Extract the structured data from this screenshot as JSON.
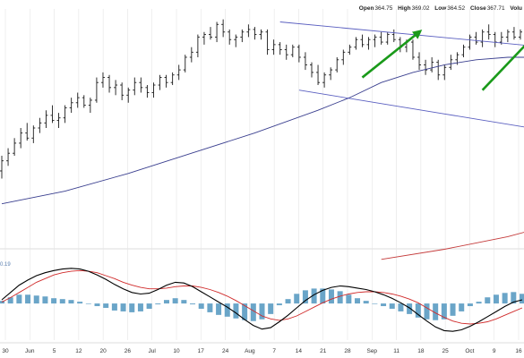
{
  "header": {
    "open_label": "Open",
    "open_value": "364.75",
    "high_label": "High",
    "high_value": "369.02",
    "low_label": "Low",
    "low_value": "364.52",
    "close_label": "Close",
    "close_value": "367.71",
    "volume_label": "Volu"
  },
  "colors": {
    "price_bar": "#1a1a1a",
    "ma_short": "#3a3f8f",
    "ma_long": "#c43a3a",
    "channel": "#5a5fc0",
    "arrow": "#1a9a1a",
    "macd_line": "#000000",
    "signal_line": "#d02a2a",
    "histogram": "#6aa5c8",
    "grid": "#e4e4e4"
  },
  "chart_data": [
    {
      "type": "ohlc",
      "xlabels": [
        "30",
        "Jun",
        "5",
        "12",
        "20",
        "26",
        "Jul",
        "10",
        "17",
        "24",
        "Aug",
        "7",
        "14",
        "21",
        "28",
        "Sep",
        "11",
        "18",
        "25",
        "Oct",
        "9",
        "16"
      ],
      "bars": [
        {
          "o": 303,
          "h": 309,
          "l": 300,
          "c": 307
        },
        {
          "o": 307,
          "h": 312,
          "l": 305,
          "c": 310
        },
        {
          "o": 310,
          "h": 316,
          "l": 309,
          "c": 314
        },
        {
          "o": 314,
          "h": 320,
          "l": 312,
          "c": 318
        },
        {
          "o": 318,
          "h": 322,
          "l": 315,
          "c": 316
        },
        {
          "o": 316,
          "h": 321,
          "l": 314,
          "c": 320
        },
        {
          "o": 320,
          "h": 324,
          "l": 318,
          "c": 322
        },
        {
          "o": 322,
          "h": 327,
          "l": 320,
          "c": 325
        },
        {
          "o": 325,
          "h": 329,
          "l": 322,
          "c": 323
        },
        {
          "o": 323,
          "h": 326,
          "l": 320,
          "c": 324
        },
        {
          "o": 324,
          "h": 329,
          "l": 322,
          "c": 328
        },
        {
          "o": 328,
          "h": 332,
          "l": 326,
          "c": 330
        },
        {
          "o": 330,
          "h": 334,
          "l": 328,
          "c": 332
        },
        {
          "o": 332,
          "h": 333,
          "l": 328,
          "c": 329
        },
        {
          "o": 329,
          "h": 332,
          "l": 326,
          "c": 331
        },
        {
          "o": 331,
          "h": 340,
          "l": 330,
          "c": 338
        },
        {
          "o": 338,
          "h": 342,
          "l": 336,
          "c": 340
        },
        {
          "o": 340,
          "h": 341,
          "l": 334,
          "c": 336
        },
        {
          "o": 336,
          "h": 339,
          "l": 333,
          "c": 337
        },
        {
          "o": 337,
          "h": 338,
          "l": 331,
          "c": 333
        },
        {
          "o": 333,
          "h": 336,
          "l": 330,
          "c": 335
        },
        {
          "o": 335,
          "h": 340,
          "l": 333,
          "c": 338
        },
        {
          "o": 338,
          "h": 340,
          "l": 334,
          "c": 336
        },
        {
          "o": 336,
          "h": 337,
          "l": 332,
          "c": 334
        },
        {
          "o": 334,
          "h": 338,
          "l": 332,
          "c": 337
        },
        {
          "o": 337,
          "h": 341,
          "l": 335,
          "c": 340
        },
        {
          "o": 340,
          "h": 341,
          "l": 336,
          "c": 338
        },
        {
          "o": 338,
          "h": 342,
          "l": 337,
          "c": 341
        },
        {
          "o": 341,
          "h": 345,
          "l": 339,
          "c": 343
        },
        {
          "o": 343,
          "h": 349,
          "l": 342,
          "c": 348
        },
        {
          "o": 348,
          "h": 352,
          "l": 346,
          "c": 350
        },
        {
          "o": 350,
          "h": 357,
          "l": 348,
          "c": 356
        },
        {
          "o": 356,
          "h": 358,
          "l": 353,
          "c": 357
        },
        {
          "o": 357,
          "h": 360,
          "l": 355,
          "c": 356
        },
        {
          "o": 356,
          "h": 362,
          "l": 354,
          "c": 361
        },
        {
          "o": 361,
          "h": 363,
          "l": 356,
          "c": 358
        },
        {
          "o": 358,
          "h": 359,
          "l": 353,
          "c": 355
        },
        {
          "o": 355,
          "h": 357,
          "l": 352,
          "c": 356
        },
        {
          "o": 356,
          "h": 359,
          "l": 354,
          "c": 358
        },
        {
          "o": 358,
          "h": 361,
          "l": 356,
          "c": 359
        },
        {
          "o": 359,
          "h": 360,
          "l": 355,
          "c": 357
        },
        {
          "o": 357,
          "h": 359,
          "l": 355,
          "c": 358
        },
        {
          "o": 358,
          "h": 359,
          "l": 349,
          "c": 351
        },
        {
          "o": 351,
          "h": 355,
          "l": 349,
          "c": 353
        },
        {
          "o": 353,
          "h": 354,
          "l": 349,
          "c": 351
        },
        {
          "o": 351,
          "h": 353,
          "l": 347,
          "c": 349
        },
        {
          "o": 349,
          "h": 353,
          "l": 348,
          "c": 352
        },
        {
          "o": 352,
          "h": 353,
          "l": 346,
          "c": 348
        },
        {
          "o": 348,
          "h": 350,
          "l": 343,
          "c": 345
        },
        {
          "o": 345,
          "h": 346,
          "l": 340,
          "c": 342
        },
        {
          "o": 342,
          "h": 345,
          "l": 337,
          "c": 338
        },
        {
          "o": 338,
          "h": 342,
          "l": 336,
          "c": 341
        },
        {
          "o": 341,
          "h": 344,
          "l": 339,
          "c": 343
        },
        {
          "o": 343,
          "h": 348,
          "l": 342,
          "c": 347
        },
        {
          "o": 347,
          "h": 351,
          "l": 345,
          "c": 350
        },
        {
          "o": 350,
          "h": 353,
          "l": 349,
          "c": 352
        },
        {
          "o": 352,
          "h": 356,
          "l": 351,
          "c": 355
        },
        {
          "o": 355,
          "h": 357,
          "l": 352,
          "c": 353
        },
        {
          "o": 353,
          "h": 356,
          "l": 351,
          "c": 355
        },
        {
          "o": 355,
          "h": 357,
          "l": 352,
          "c": 356
        },
        {
          "o": 356,
          "h": 358,
          "l": 353,
          "c": 354
        },
        {
          "o": 354,
          "h": 358,
          "l": 353,
          "c": 357
        },
        {
          "o": 357,
          "h": 359,
          "l": 354,
          "c": 355
        },
        {
          "o": 355,
          "h": 356,
          "l": 350,
          "c": 352
        },
        {
          "o": 352,
          "h": 355,
          "l": 350,
          "c": 354
        },
        {
          "o": 354,
          "h": 355,
          "l": 347,
          "c": 348
        },
        {
          "o": 348,
          "h": 350,
          "l": 343,
          "c": 345
        },
        {
          "o": 345,
          "h": 347,
          "l": 341,
          "c": 343
        },
        {
          "o": 343,
          "h": 348,
          "l": 342,
          "c": 346
        },
        {
          "o": 346,
          "h": 347,
          "l": 339,
          "c": 341
        },
        {
          "o": 341,
          "h": 345,
          "l": 339,
          "c": 344
        },
        {
          "o": 344,
          "h": 349,
          "l": 343,
          "c": 347
        },
        {
          "o": 347,
          "h": 350,
          "l": 345,
          "c": 349
        },
        {
          "o": 349,
          "h": 353,
          "l": 348,
          "c": 352
        },
        {
          "o": 352,
          "h": 357,
          "l": 351,
          "c": 356
        },
        {
          "o": 356,
          "h": 358,
          "l": 353,
          "c": 354
        },
        {
          "o": 354,
          "h": 359,
          "l": 352,
          "c": 358
        },
        {
          "o": 358,
          "h": 361,
          "l": 355,
          "c": 357
        },
        {
          "o": 357,
          "h": 358,
          "l": 352,
          "c": 354
        },
        {
          "o": 354,
          "h": 358,
          "l": 353,
          "c": 356
        },
        {
          "o": 356,
          "h": 359,
          "l": 354,
          "c": 358
        },
        {
          "o": 358,
          "h": 360,
          "l": 355,
          "c": 356
        },
        {
          "o": 356,
          "h": 359,
          "l": 355,
          "c": 358
        }
      ],
      "ma_short": [
        [
          0,
          290
        ],
        [
          10,
          295
        ],
        [
          20,
          302
        ],
        [
          30,
          310
        ],
        [
          40,
          318
        ],
        [
          50,
          327
        ],
        [
          55,
          332
        ],
        [
          60,
          338
        ],
        [
          65,
          342
        ],
        [
          70,
          345
        ],
        [
          75,
          347
        ],
        [
          80,
          348
        ],
        [
          82,
          348
        ],
        [
          86,
          348
        ]
      ],
      "ma_long": [
        [
          60,
          268
        ],
        [
          70,
          272
        ],
        [
          80,
          277
        ],
        [
          86,
          281
        ]
      ],
      "channel_upper": [
        [
          44,
          362
        ],
        [
          86,
          352
        ]
      ],
      "channel_lower": [
        [
          47,
          335
        ],
        [
          86,
          319
        ]
      ],
      "arrows": [
        {
          "from": [
            57,
            340
          ],
          "to": [
            66,
            358
          ]
        },
        {
          "from": [
            76,
            335
          ],
          "to": [
            84,
            356
          ]
        }
      ],
      "ylim": [
        275,
        365
      ]
    },
    {
      "type": "macd",
      "panel_label": "0.19",
      "macd": [
        0.5,
        1.5,
        2.5,
        3.2,
        3.8,
        4.2,
        4.5,
        4.7,
        4.8,
        4.7,
        4.4,
        3.9,
        3.3,
        2.6,
        2.0,
        1.5,
        1.3,
        1.4,
        1.9,
        2.5,
        2.9,
        2.8,
        2.3,
        1.6,
        0.9,
        0.2,
        -0.5,
        -1.3,
        -2.2,
        -3.0,
        -3.5,
        -3.3,
        -2.5,
        -1.6,
        -0.6,
        0.4,
        1.2,
        1.8,
        2.2,
        2.4,
        2.3,
        2.1,
        1.9,
        1.6,
        1.2,
        0.7,
        0.1,
        -0.6,
        -1.5,
        -2.4,
        -3.2,
        -3.7,
        -3.8,
        -3.6,
        -3.1,
        -2.5,
        -1.8,
        -1.1,
        -0.4,
        0.2,
        0.5
      ],
      "signal": [
        0.2,
        0.8,
        1.5,
        2.2,
        2.9,
        3.4,
        3.9,
        4.2,
        4.4,
        4.5,
        4.4,
        4.2,
        3.8,
        3.4,
        2.9,
        2.5,
        2.2,
        2.0,
        2.0,
        2.1,
        2.3,
        2.4,
        2.4,
        2.2,
        1.9,
        1.5,
        1.0,
        0.4,
        -0.3,
        -1.0,
        -1.7,
        -2.1,
        -2.3,
        -2.1,
        -1.7,
        -1.1,
        -0.5,
        0.1,
        0.6,
        1.0,
        1.3,
        1.5,
        1.6,
        1.6,
        1.5,
        1.3,
        1.0,
        0.6,
        0.1,
        -0.6,
        -1.3,
        -1.9,
        -2.4,
        -2.7,
        -2.8,
        -2.7,
        -2.5,
        -2.1,
        -1.6,
        -1.1,
        -0.6
      ],
      "ylim": [
        -5,
        6
      ]
    }
  ]
}
